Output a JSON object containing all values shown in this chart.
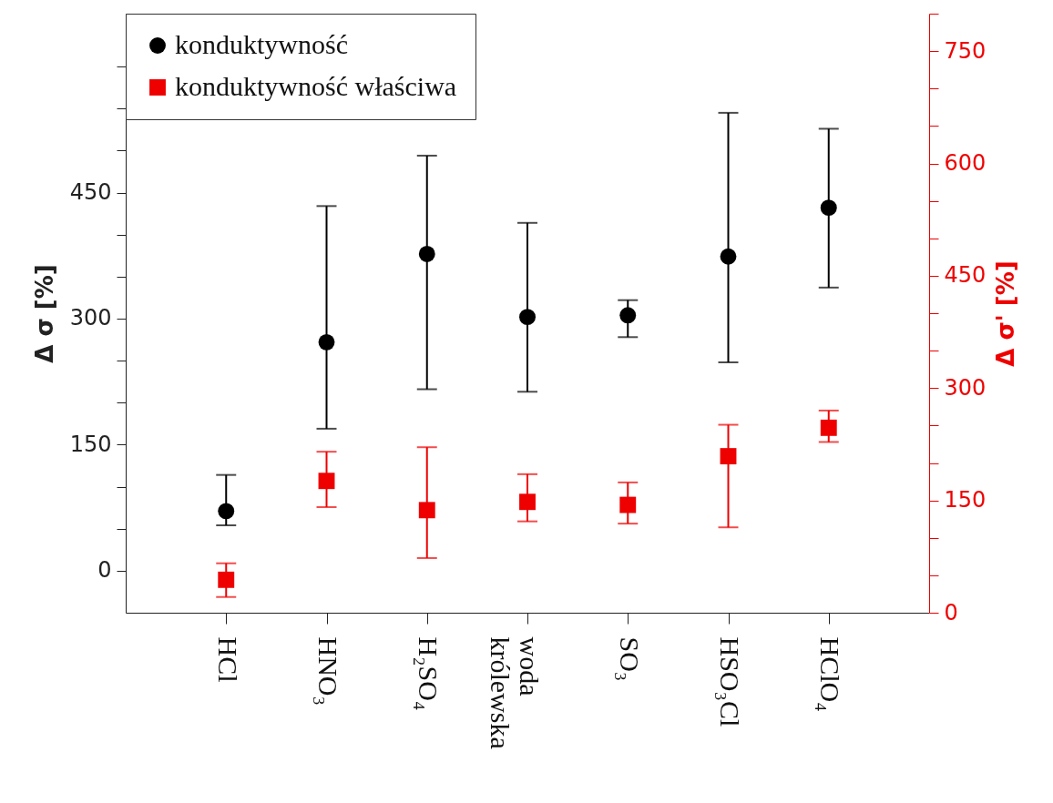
{
  "chart_data": {
    "type": "scatter",
    "categories": [
      "HCl",
      "HNO₃",
      "H₂SO₄",
      "woda królewska",
      "SO₃",
      "HSO₃Cl",
      "HClO₄"
    ],
    "series": [
      {
        "name": "konduktywność",
        "color": "#000000",
        "marker": "circle",
        "values": [
          71,
          272,
          377,
          302,
          304,
          374,
          432
        ],
        "errors": [
          [
            54,
            114
          ],
          [
            169,
            434
          ],
          [
            216,
            494
          ],
          [
            213,
            414
          ],
          [
            278,
            322
          ],
          [
            248,
            545
          ],
          [
            337,
            526
          ]
        ]
      },
      {
        "name": "konduktywność właściwa",
        "color": "#ee0000",
        "marker": "square",
        "axis": "y2",
        "values": [
          44,
          176,
          137,
          148,
          144,
          209,
          247
        ],
        "errors": [
          [
            21,
            66
          ],
          [
            141,
            215
          ],
          [
            73,
            221
          ],
          [
            122,
            185
          ],
          [
            119,
            174
          ],
          [
            114,
            251
          ],
          [
            228,
            270
          ]
        ]
      }
    ],
    "ylabel": "Δ σ [%]",
    "y2label": "Δ σ' [%]",
    "ylim": [
      -50,
      663
    ],
    "yticks": [
      0,
      {
        "value": 50,
        "label": null
      },
      {
        "value": 100,
        "label": null
      },
      150,
      {
        "value": 200,
        "label": null
      },
      {
        "value": 250,
        "label": null
      },
      300,
      {
        "value": 350,
        "label": null
      },
      {
        "value": 400,
        "label": null
      },
      450,
      {
        "value": 500,
        "label": null
      },
      {
        "value": 550,
        "label": null
      },
      {
        "value": 600,
        "label": null
      }
    ],
    "y2lim": [
      0,
      800
    ],
    "y2ticks": [
      0,
      {
        "value": 50,
        "label": null
      },
      {
        "value": 100,
        "label": null
      },
      150,
      {
        "value": 200,
        "label": null
      },
      {
        "value": 250,
        "label": null
      },
      300,
      {
        "value": 350,
        "label": null
      },
      {
        "value": 400,
        "label": null
      },
      450,
      {
        "value": 500,
        "label": null
      },
      {
        "value": 550,
        "label": null
      },
      600,
      {
        "value": 650,
        "label": null
      },
      {
        "value": 700,
        "label": null
      },
      750,
      {
        "value": 800,
        "label": null
      }
    ],
    "legend": "top left",
    "grid": false
  }
}
